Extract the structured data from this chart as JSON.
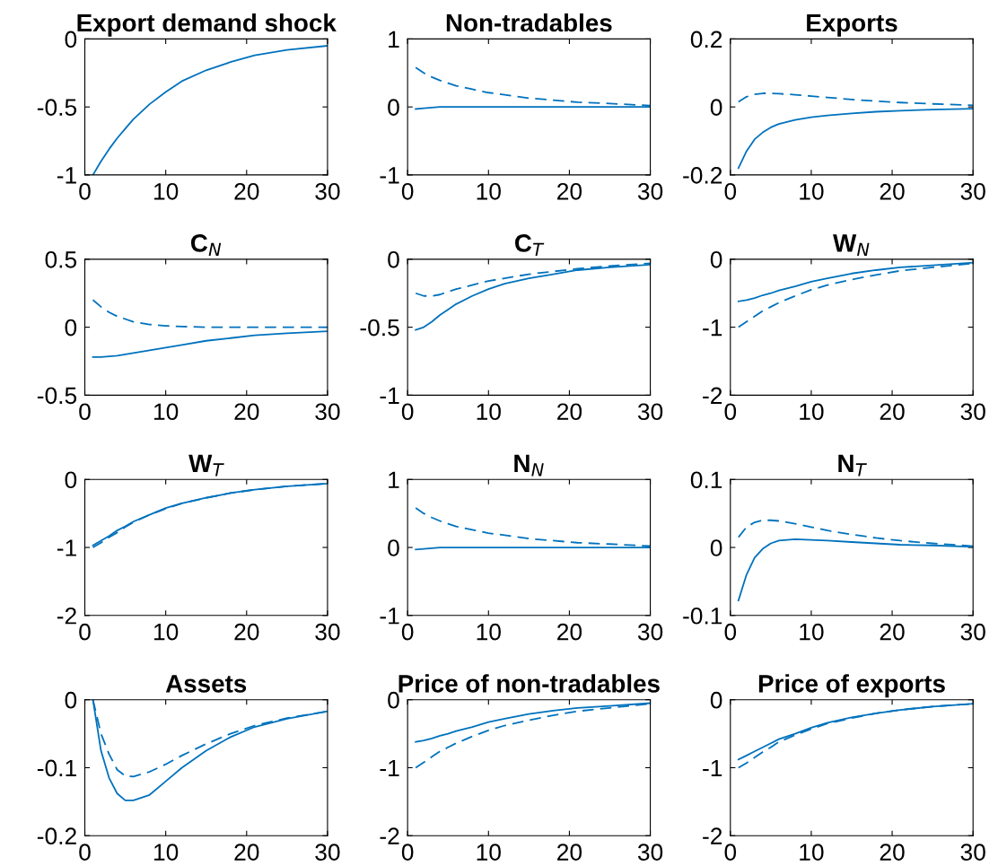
{
  "chart_data": [
    {
      "type": "line",
      "title": "Export demand shock",
      "x": [
        1,
        2,
        3,
        4,
        5,
        6,
        8,
        10,
        12,
        15,
        18,
        21,
        25,
        30
      ],
      "xlim": [
        0,
        30
      ],
      "xticks": [
        0,
        10,
        20,
        30
      ],
      "ylim": [
        -1,
        0
      ],
      "yticks": [
        -1,
        -0.5,
        0
      ],
      "series": [
        {
          "color": "#0072bd",
          "line_style": "solid",
          "values": [
            -1,
            -0.9,
            -0.81,
            -0.73,
            -0.66,
            -0.59,
            -0.48,
            -0.39,
            -0.31,
            -0.23,
            -0.17,
            -0.12,
            -0.08,
            -0.05
          ]
        }
      ]
    },
    {
      "type": "line",
      "title": "Non-tradables",
      "x": [
        1,
        2,
        3,
        4,
        5,
        6,
        8,
        10,
        12,
        15,
        18,
        21,
        25,
        30
      ],
      "xlim": [
        0,
        30
      ],
      "xticks": [
        0,
        10,
        20,
        30
      ],
      "ylim": [
        -1,
        1
      ],
      "yticks": [
        -1,
        0,
        1
      ],
      "series": [
        {
          "color": "#0072bd",
          "line_style": "solid",
          "values": [
            -0.03,
            -0.02,
            -0.01,
            0,
            0,
            0,
            0,
            0,
            0,
            0,
            0,
            0,
            0,
            0
          ]
        },
        {
          "color": "#0072bd",
          "line_style": "dashed",
          "values": [
            0.58,
            0.5,
            0.44,
            0.39,
            0.35,
            0.31,
            0.26,
            0.21,
            0.18,
            0.13,
            0.1,
            0.07,
            0.05,
            0.02
          ]
        }
      ]
    },
    {
      "type": "line",
      "title": "Exports",
      "x": [
        1,
        2,
        3,
        4,
        5,
        6,
        8,
        10,
        12,
        15,
        18,
        21,
        25,
        30
      ],
      "xlim": [
        0,
        30
      ],
      "xticks": [
        0,
        10,
        20,
        30
      ],
      "ylim": [
        -0.2,
        0.2
      ],
      "yticks": [
        -0.2,
        0,
        0.2
      ],
      "series": [
        {
          "color": "#0072bd",
          "line_style": "solid",
          "values": [
            -0.18,
            -0.13,
            -0.095,
            -0.075,
            -0.06,
            -0.05,
            -0.038,
            -0.03,
            -0.025,
            -0.019,
            -0.014,
            -0.011,
            -0.008,
            -0.005
          ]
        },
        {
          "color": "#0072bd",
          "line_style": "dashed",
          "values": [
            0.015,
            0.03,
            0.037,
            0.04,
            0.04,
            0.039,
            0.036,
            0.032,
            0.028,
            0.022,
            0.017,
            0.013,
            0.009,
            0.005
          ]
        }
      ]
    },
    {
      "type": "line",
      "title": "C$_{N}$",
      "x": [
        1,
        2,
        3,
        4,
        5,
        6,
        8,
        10,
        12,
        15,
        18,
        21,
        25,
        30
      ],
      "xlim": [
        0,
        30
      ],
      "xticks": [
        0,
        10,
        20,
        30
      ],
      "ylim": [
        -0.5,
        0.5
      ],
      "yticks": [
        -0.5,
        0,
        0.5
      ],
      "series": [
        {
          "color": "#0072bd",
          "line_style": "solid",
          "values": [
            -0.22,
            -0.22,
            -0.215,
            -0.21,
            -0.2,
            -0.19,
            -0.17,
            -0.15,
            -0.13,
            -0.1,
            -0.08,
            -0.06,
            -0.045,
            -0.03
          ]
        },
        {
          "color": "#0072bd",
          "line_style": "dashed",
          "values": [
            0.2,
            0.15,
            0.11,
            0.08,
            0.06,
            0.04,
            0.02,
            0.01,
            0.005,
            0,
            0,
            0,
            0,
            0
          ]
        }
      ]
    },
    {
      "type": "line",
      "title": "C$_{T}$",
      "x": [
        1,
        2,
        3,
        4,
        5,
        6,
        8,
        10,
        12,
        15,
        18,
        21,
        25,
        30
      ],
      "xlim": [
        0,
        30
      ],
      "xticks": [
        0,
        10,
        20,
        30
      ],
      "ylim": [
        -1,
        0
      ],
      "yticks": [
        -1,
        -0.5,
        0
      ],
      "series": [
        {
          "color": "#0072bd",
          "line_style": "solid",
          "values": [
            -0.52,
            -0.5,
            -0.46,
            -0.41,
            -0.37,
            -0.33,
            -0.27,
            -0.22,
            -0.18,
            -0.14,
            -0.11,
            -0.08,
            -0.06,
            -0.04
          ]
        },
        {
          "color": "#0072bd",
          "line_style": "dashed",
          "values": [
            -0.25,
            -0.27,
            -0.27,
            -0.26,
            -0.24,
            -0.22,
            -0.19,
            -0.16,
            -0.14,
            -0.11,
            -0.09,
            -0.07,
            -0.05,
            -0.03
          ]
        }
      ]
    },
    {
      "type": "line",
      "title": "W$_{N}$",
      "x": [
        1,
        2,
        3,
        4,
        5,
        6,
        8,
        10,
        12,
        15,
        18,
        21,
        25,
        30
      ],
      "xlim": [
        0,
        30
      ],
      "xticks": [
        0,
        10,
        20,
        30
      ],
      "ylim": [
        -2,
        0
      ],
      "yticks": [
        -2,
        -1,
        0
      ],
      "series": [
        {
          "color": "#0072bd",
          "line_style": "solid",
          "values": [
            -0.62,
            -0.6,
            -0.57,
            -0.53,
            -0.5,
            -0.46,
            -0.4,
            -0.33,
            -0.28,
            -0.21,
            -0.16,
            -0.12,
            -0.09,
            -0.05
          ]
        },
        {
          "color": "#0072bd",
          "line_style": "dashed",
          "values": [
            -1.0,
            -0.92,
            -0.84,
            -0.76,
            -0.7,
            -0.64,
            -0.54,
            -0.45,
            -0.38,
            -0.3,
            -0.23,
            -0.17,
            -0.12,
            -0.06
          ]
        }
      ]
    },
    {
      "type": "line",
      "title": "W$_{T}$",
      "x": [
        1,
        2,
        3,
        4,
        5,
        6,
        8,
        10,
        12,
        15,
        18,
        21,
        25,
        30
      ],
      "xlim": [
        0,
        30
      ],
      "xticks": [
        0,
        10,
        20,
        30
      ],
      "ylim": [
        -2,
        0
      ],
      "yticks": [
        -2,
        -1,
        0
      ],
      "series": [
        {
          "color": "#0072bd",
          "line_style": "solid",
          "values": [
            -0.97,
            -0.9,
            -0.83,
            -0.75,
            -0.69,
            -0.62,
            -0.52,
            -0.42,
            -0.35,
            -0.27,
            -0.2,
            -0.15,
            -0.1,
            -0.06
          ]
        },
        {
          "color": "#0072bd",
          "line_style": "dashed",
          "values": [
            -1.0,
            -0.93,
            -0.85,
            -0.78,
            -0.7,
            -0.63,
            -0.52,
            -0.43,
            -0.35,
            -0.27,
            -0.2,
            -0.15,
            -0.1,
            -0.06
          ]
        }
      ]
    },
    {
      "type": "line",
      "title": "N$_{N}$",
      "x": [
        1,
        2,
        3,
        4,
        5,
        6,
        8,
        10,
        12,
        15,
        18,
        21,
        25,
        30
      ],
      "xlim": [
        0,
        30
      ],
      "xticks": [
        0,
        10,
        20,
        30
      ],
      "ylim": [
        -1,
        1
      ],
      "yticks": [
        -1,
        0,
        1
      ],
      "series": [
        {
          "color": "#0072bd",
          "line_style": "solid",
          "values": [
            -0.03,
            -0.02,
            -0.01,
            0,
            0,
            0,
            0,
            0,
            0,
            0,
            0,
            0,
            0,
            0
          ]
        },
        {
          "color": "#0072bd",
          "line_style": "dashed",
          "values": [
            0.58,
            0.5,
            0.44,
            0.39,
            0.35,
            0.31,
            0.26,
            0.21,
            0.18,
            0.13,
            0.1,
            0.07,
            0.05,
            0.02
          ]
        }
      ]
    },
    {
      "type": "line",
      "title": "N$_{T}$",
      "x": [
        1,
        2,
        3,
        4,
        5,
        6,
        8,
        10,
        12,
        15,
        18,
        21,
        25,
        30
      ],
      "xlim": [
        0,
        30
      ],
      "xticks": [
        0,
        10,
        20,
        30
      ],
      "ylim": [
        -0.1,
        0.1
      ],
      "yticks": [
        -0.1,
        0,
        0.1
      ],
      "series": [
        {
          "color": "#0072bd",
          "line_style": "solid",
          "values": [
            -0.078,
            -0.04,
            -0.015,
            -0.002,
            0.006,
            0.01,
            0.012,
            0.011,
            0.01,
            0.008,
            0.006,
            0.004,
            0.003,
            0.001
          ]
        },
        {
          "color": "#0072bd",
          "line_style": "dashed",
          "values": [
            0.015,
            0.03,
            0.037,
            0.04,
            0.04,
            0.039,
            0.035,
            0.03,
            0.025,
            0.019,
            0.014,
            0.01,
            0.006,
            0.002
          ]
        }
      ]
    },
    {
      "type": "line",
      "title": "Assets",
      "x": [
        1,
        2,
        3,
        4,
        5,
        6,
        8,
        10,
        12,
        15,
        18,
        21,
        25,
        30
      ],
      "xlim": [
        0,
        30
      ],
      "xticks": [
        0,
        10,
        20,
        30
      ],
      "ylim": [
        -0.2,
        0
      ],
      "yticks": [
        -0.2,
        -0.1,
        0
      ],
      "series": [
        {
          "color": "#0072bd",
          "line_style": "solid",
          "values": [
            0,
            -0.075,
            -0.115,
            -0.138,
            -0.148,
            -0.148,
            -0.14,
            -0.12,
            -0.1,
            -0.075,
            -0.055,
            -0.04,
            -0.028,
            -0.017
          ]
        },
        {
          "color": "#0072bd",
          "line_style": "dashed",
          "values": [
            0,
            -0.05,
            -0.08,
            -0.103,
            -0.112,
            -0.113,
            -0.106,
            -0.095,
            -0.082,
            -0.065,
            -0.05,
            -0.038,
            -0.027,
            -0.017
          ]
        }
      ]
    },
    {
      "type": "line",
      "title": "Price of non-tradables",
      "x": [
        1,
        2,
        3,
        4,
        5,
        6,
        8,
        10,
        12,
        15,
        18,
        21,
        25,
        30
      ],
      "xlim": [
        0,
        30
      ],
      "xticks": [
        0,
        10,
        20,
        30
      ],
      "ylim": [
        -2,
        0
      ],
      "yticks": [
        -2,
        -1,
        0
      ],
      "series": [
        {
          "color": "#0072bd",
          "line_style": "solid",
          "values": [
            -0.62,
            -0.6,
            -0.57,
            -0.53,
            -0.5,
            -0.46,
            -0.4,
            -0.33,
            -0.28,
            -0.21,
            -0.16,
            -0.12,
            -0.09,
            -0.05
          ]
        },
        {
          "color": "#0072bd",
          "line_style": "dashed",
          "values": [
            -1.0,
            -0.92,
            -0.84,
            -0.76,
            -0.7,
            -0.64,
            -0.54,
            -0.45,
            -0.38,
            -0.3,
            -0.23,
            -0.17,
            -0.12,
            -0.06
          ]
        }
      ]
    },
    {
      "type": "line",
      "title": "Price of exports",
      "x": [
        1,
        2,
        3,
        4,
        5,
        6,
        8,
        10,
        12,
        15,
        18,
        21,
        25,
        30
      ],
      "xlim": [
        0,
        30
      ],
      "xticks": [
        0,
        10,
        20,
        30
      ],
      "ylim": [
        -2,
        0
      ],
      "yticks": [
        -2,
        -1,
        0
      ],
      "series": [
        {
          "color": "#0072bd",
          "line_style": "solid",
          "values": [
            -0.88,
            -0.82,
            -0.76,
            -0.7,
            -0.64,
            -0.58,
            -0.5,
            -0.41,
            -0.34,
            -0.26,
            -0.2,
            -0.15,
            -0.1,
            -0.06
          ]
        },
        {
          "color": "#0072bd",
          "line_style": "dashed",
          "values": [
            -1.0,
            -0.93,
            -0.85,
            -0.77,
            -0.7,
            -0.62,
            -0.52,
            -0.43,
            -0.35,
            -0.27,
            -0.2,
            -0.15,
            -0.1,
            -0.06
          ]
        }
      ]
    }
  ]
}
